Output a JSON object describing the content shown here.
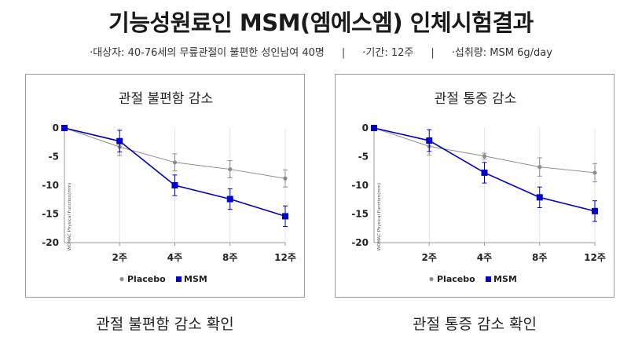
{
  "header": {
    "title": "기능성원료인 MSM(엠에스엠) 인체시험결과",
    "info": [
      "·대상자: 40-76세의 무릎관절이 불편한 성인남여 40명",
      "·기간: 12주",
      "·섭취량: MSM 6g/day"
    ],
    "separator": "|"
  },
  "captions": [
    "관절 불편함 감소 확인",
    "관절 통증 감소 확인"
  ],
  "chart_data": [
    {
      "type": "line",
      "title": "관절 불편함 감소",
      "ylabel": "WOMAC Physical Function(mm)",
      "xlabel": "",
      "x_ticks": [
        "2주",
        "4주",
        "8주",
        "12주"
      ],
      "x_values": [
        0,
        1,
        2,
        3,
        4
      ],
      "ylim": [
        -20,
        0
      ],
      "y_ticks": [
        0,
        -5,
        -10,
        -15,
        -20
      ],
      "legend": "bottom-center",
      "series": [
        {
          "name": "Placebo",
          "color": "#8c8c8c",
          "marker": "circle",
          "values": [
            0,
            -3.3,
            -6.0,
            -7.2,
            -8.8
          ],
          "errors": [
            0,
            1.5,
            1.5,
            1.5,
            1.5
          ]
        },
        {
          "name": "MSM",
          "color": "#0000c8",
          "marker": "square",
          "values": [
            0,
            -2.3,
            -10.0,
            -12.4,
            -15.4
          ],
          "errors": [
            0,
            1.9,
            1.8,
            1.8,
            1.8
          ]
        }
      ]
    },
    {
      "type": "line",
      "title": "관절 통증 감소",
      "ylabel": "WOMAC Physical Function(mm)",
      "xlabel": "",
      "x_ticks": [
        "2주",
        "4주",
        "8주",
        "12주"
      ],
      "x_values": [
        0,
        1,
        2,
        3,
        4
      ],
      "ylim": [
        -20,
        0
      ],
      "y_ticks": [
        0,
        -5,
        -10,
        -15,
        -20
      ],
      "legend": "bottom-center",
      "series": [
        {
          "name": "Placebo",
          "color": "#8c8c8c",
          "marker": "circle",
          "values": [
            0,
            -3.2,
            -4.9,
            -6.8,
            -7.8
          ],
          "errors": [
            0,
            1.5,
            0.5,
            1.6,
            1.6
          ]
        },
        {
          "name": "MSM",
          "color": "#0000c8",
          "marker": "square",
          "values": [
            0,
            -2.2,
            -7.8,
            -12.1,
            -14.5
          ],
          "errors": [
            0,
            1.9,
            1.8,
            1.8,
            1.8
          ]
        }
      ]
    }
  ]
}
